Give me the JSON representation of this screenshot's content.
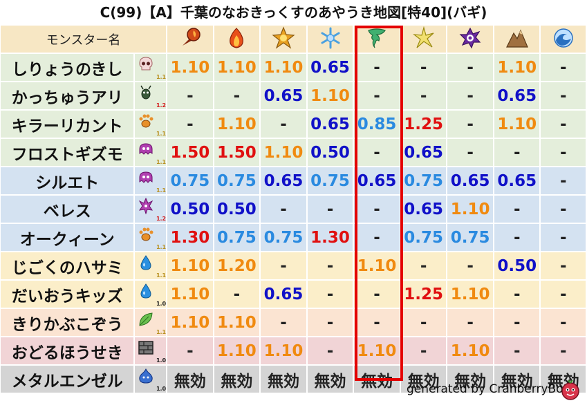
{
  "title": "C(99)【A】千葉のなおきっくすのあやうき地図[特40](バギ)",
  "header": {
    "name_label": "モンスター名",
    "elements": [
      {
        "icon": "fire-icon",
        "color": "#d04a1a"
      },
      {
        "icon": "flame-icon",
        "color": "#e8501a"
      },
      {
        "icon": "explosion-icon",
        "color": "#e8a020"
      },
      {
        "icon": "ice-icon",
        "color": "#4aa0e0"
      },
      {
        "icon": "wind-icon",
        "color": "#40b070"
      },
      {
        "icon": "lightning-icon",
        "color": "#d8c020"
      },
      {
        "icon": "darkness-icon",
        "color": "#6a2aa0"
      },
      {
        "icon": "earth-icon",
        "color": "#a07040"
      },
      {
        "icon": "water-icon",
        "color": "#2a70c0"
      }
    ]
  },
  "rows": [
    {
      "name": "しりょうのきし",
      "icon": "skull-icon",
      "level": "1.1",
      "bg": "g",
      "values": [
        {
          "t": "1.10",
          "c": "o"
        },
        {
          "t": "1.10",
          "c": "o"
        },
        {
          "t": "1.10",
          "c": "o"
        },
        {
          "t": "0.65",
          "c": "b"
        },
        {
          "t": "-",
          "c": "d"
        },
        {
          "t": "-",
          "c": "d"
        },
        {
          "t": "-",
          "c": "d"
        },
        {
          "t": "1.10",
          "c": "o"
        },
        {
          "t": "-",
          "c": "d"
        }
      ]
    },
    {
      "name": "かっちゅうアリ",
      "icon": "bug-icon",
      "level": "1.2",
      "bg": "g",
      "values": [
        {
          "t": "-",
          "c": "d"
        },
        {
          "t": "-",
          "c": "d"
        },
        {
          "t": "0.65",
          "c": "b"
        },
        {
          "t": "1.10",
          "c": "o"
        },
        {
          "t": "-",
          "c": "d"
        },
        {
          "t": "-",
          "c": "d"
        },
        {
          "t": "-",
          "c": "d"
        },
        {
          "t": "0.65",
          "c": "b"
        },
        {
          "t": "-",
          "c": "d"
        }
      ]
    },
    {
      "name": "キラーリカント",
      "icon": "paw-icon",
      "level": "1.1",
      "bg": "g",
      "values": [
        {
          "t": "-",
          "c": "d"
        },
        {
          "t": "1.10",
          "c": "o"
        },
        {
          "t": "-",
          "c": "d"
        },
        {
          "t": "0.65",
          "c": "b"
        },
        {
          "t": "0.85",
          "c": "l"
        },
        {
          "t": "1.25",
          "c": "r"
        },
        {
          "t": "-",
          "c": "d"
        },
        {
          "t": "1.10",
          "c": "o"
        },
        {
          "t": "-",
          "c": "d"
        }
      ]
    },
    {
      "name": "フロストギズモ",
      "icon": "ghost-icon",
      "level": "1.1",
      "bg": "g",
      "values": [
        {
          "t": "1.50",
          "c": "r"
        },
        {
          "t": "1.50",
          "c": "r"
        },
        {
          "t": "1.10",
          "c": "o"
        },
        {
          "t": "0.50",
          "c": "b"
        },
        {
          "t": "-",
          "c": "d"
        },
        {
          "t": "0.65",
          "c": "b"
        },
        {
          "t": "-",
          "c": "d"
        },
        {
          "t": "-",
          "c": "d"
        },
        {
          "t": "-",
          "c": "d"
        }
      ]
    },
    {
      "name": "シルエト",
      "icon": "ghost-icon",
      "level": "1.1",
      "bg": "b",
      "values": [
        {
          "t": "0.75",
          "c": "l"
        },
        {
          "t": "0.75",
          "c": "l"
        },
        {
          "t": "0.65",
          "c": "b"
        },
        {
          "t": "0.75",
          "c": "l"
        },
        {
          "t": "0.65",
          "c": "b"
        },
        {
          "t": "0.75",
          "c": "l"
        },
        {
          "t": "0.65",
          "c": "b"
        },
        {
          "t": "0.65",
          "c": "b"
        },
        {
          "t": "-",
          "c": "d"
        }
      ]
    },
    {
      "name": "ベレス",
      "icon": "demon-icon",
      "level": "1.2",
      "bg": "b",
      "values": [
        {
          "t": "0.50",
          "c": "b"
        },
        {
          "t": "0.50",
          "c": "b"
        },
        {
          "t": "-",
          "c": "d"
        },
        {
          "t": "-",
          "c": "d"
        },
        {
          "t": "-",
          "c": "d"
        },
        {
          "t": "0.65",
          "c": "b"
        },
        {
          "t": "1.10",
          "c": "o"
        },
        {
          "t": "-",
          "c": "d"
        },
        {
          "t": "-",
          "c": "d"
        }
      ]
    },
    {
      "name": "オークィーン",
      "icon": "paw-icon",
      "level": "1.1",
      "bg": "b",
      "values": [
        {
          "t": "1.30",
          "c": "r"
        },
        {
          "t": "0.75",
          "c": "l"
        },
        {
          "t": "0.75",
          "c": "l"
        },
        {
          "t": "1.30",
          "c": "r"
        },
        {
          "t": "-",
          "c": "d"
        },
        {
          "t": "0.75",
          "c": "l"
        },
        {
          "t": "0.75",
          "c": "l"
        },
        {
          "t": "-",
          "c": "d"
        },
        {
          "t": "-",
          "c": "d"
        }
      ]
    },
    {
      "name": "じごくのハサミ",
      "icon": "drop-icon",
      "level": "1.1",
      "bg": "y",
      "values": [
        {
          "t": "1.10",
          "c": "o"
        },
        {
          "t": "1.20",
          "c": "o"
        },
        {
          "t": "-",
          "c": "d"
        },
        {
          "t": "-",
          "c": "d"
        },
        {
          "t": "1.10",
          "c": "o"
        },
        {
          "t": "-",
          "c": "d"
        },
        {
          "t": "-",
          "c": "d"
        },
        {
          "t": "0.50",
          "c": "b"
        },
        {
          "t": "-",
          "c": "d"
        }
      ]
    },
    {
      "name": "だいおうキッズ",
      "icon": "drop-icon",
      "level": "1.0",
      "bg": "y",
      "values": [
        {
          "t": "1.10",
          "c": "o"
        },
        {
          "t": "-",
          "c": "d"
        },
        {
          "t": "0.65",
          "c": "b"
        },
        {
          "t": "-",
          "c": "d"
        },
        {
          "t": "-",
          "c": "d"
        },
        {
          "t": "1.25",
          "c": "r"
        },
        {
          "t": "1.10",
          "c": "o"
        },
        {
          "t": "-",
          "c": "d"
        },
        {
          "t": "-",
          "c": "d"
        }
      ]
    },
    {
      "name": "きりかぶこぞう",
      "icon": "leaf-icon",
      "level": "1.1",
      "bg": "o",
      "values": [
        {
          "t": "1.10",
          "c": "o"
        },
        {
          "t": "1.10",
          "c": "o"
        },
        {
          "t": "-",
          "c": "d"
        },
        {
          "t": "-",
          "c": "d"
        },
        {
          "t": "-",
          "c": "d"
        },
        {
          "t": "-",
          "c": "d"
        },
        {
          "t": "-",
          "c": "d"
        },
        {
          "t": "-",
          "c": "d"
        },
        {
          "t": "-",
          "c": "d"
        }
      ]
    },
    {
      "name": "おどるほうせき",
      "icon": "brick-icon",
      "level": "1.0",
      "bg": "p",
      "values": [
        {
          "t": "-",
          "c": "d"
        },
        {
          "t": "1.10",
          "c": "o"
        },
        {
          "t": "1.10",
          "c": "o"
        },
        {
          "t": "-",
          "c": "d"
        },
        {
          "t": "1.10",
          "c": "o"
        },
        {
          "t": "-",
          "c": "d"
        },
        {
          "t": "1.10",
          "c": "o"
        },
        {
          "t": "-",
          "c": "d"
        },
        {
          "t": "-",
          "c": "d"
        }
      ]
    },
    {
      "name": "メタルエンゼル",
      "icon": "slime-icon",
      "level": "1.0",
      "bg": "k",
      "values": [
        {
          "t": "無効",
          "c": "d"
        },
        {
          "t": "無効",
          "c": "d"
        },
        {
          "t": "無効",
          "c": "d"
        },
        {
          "t": "無効",
          "c": "d"
        },
        {
          "t": "無効",
          "c": "d"
        },
        {
          "t": "無効",
          "c": "d"
        },
        {
          "t": "無効",
          "c": "d"
        },
        {
          "t": "無効",
          "c": "d"
        },
        {
          "t": "無効",
          "c": "d"
        }
      ]
    }
  ],
  "highlight_column": 4,
  "footer": "generated by CranberryBot",
  "bot_icon": "cranberry-bot-icon"
}
